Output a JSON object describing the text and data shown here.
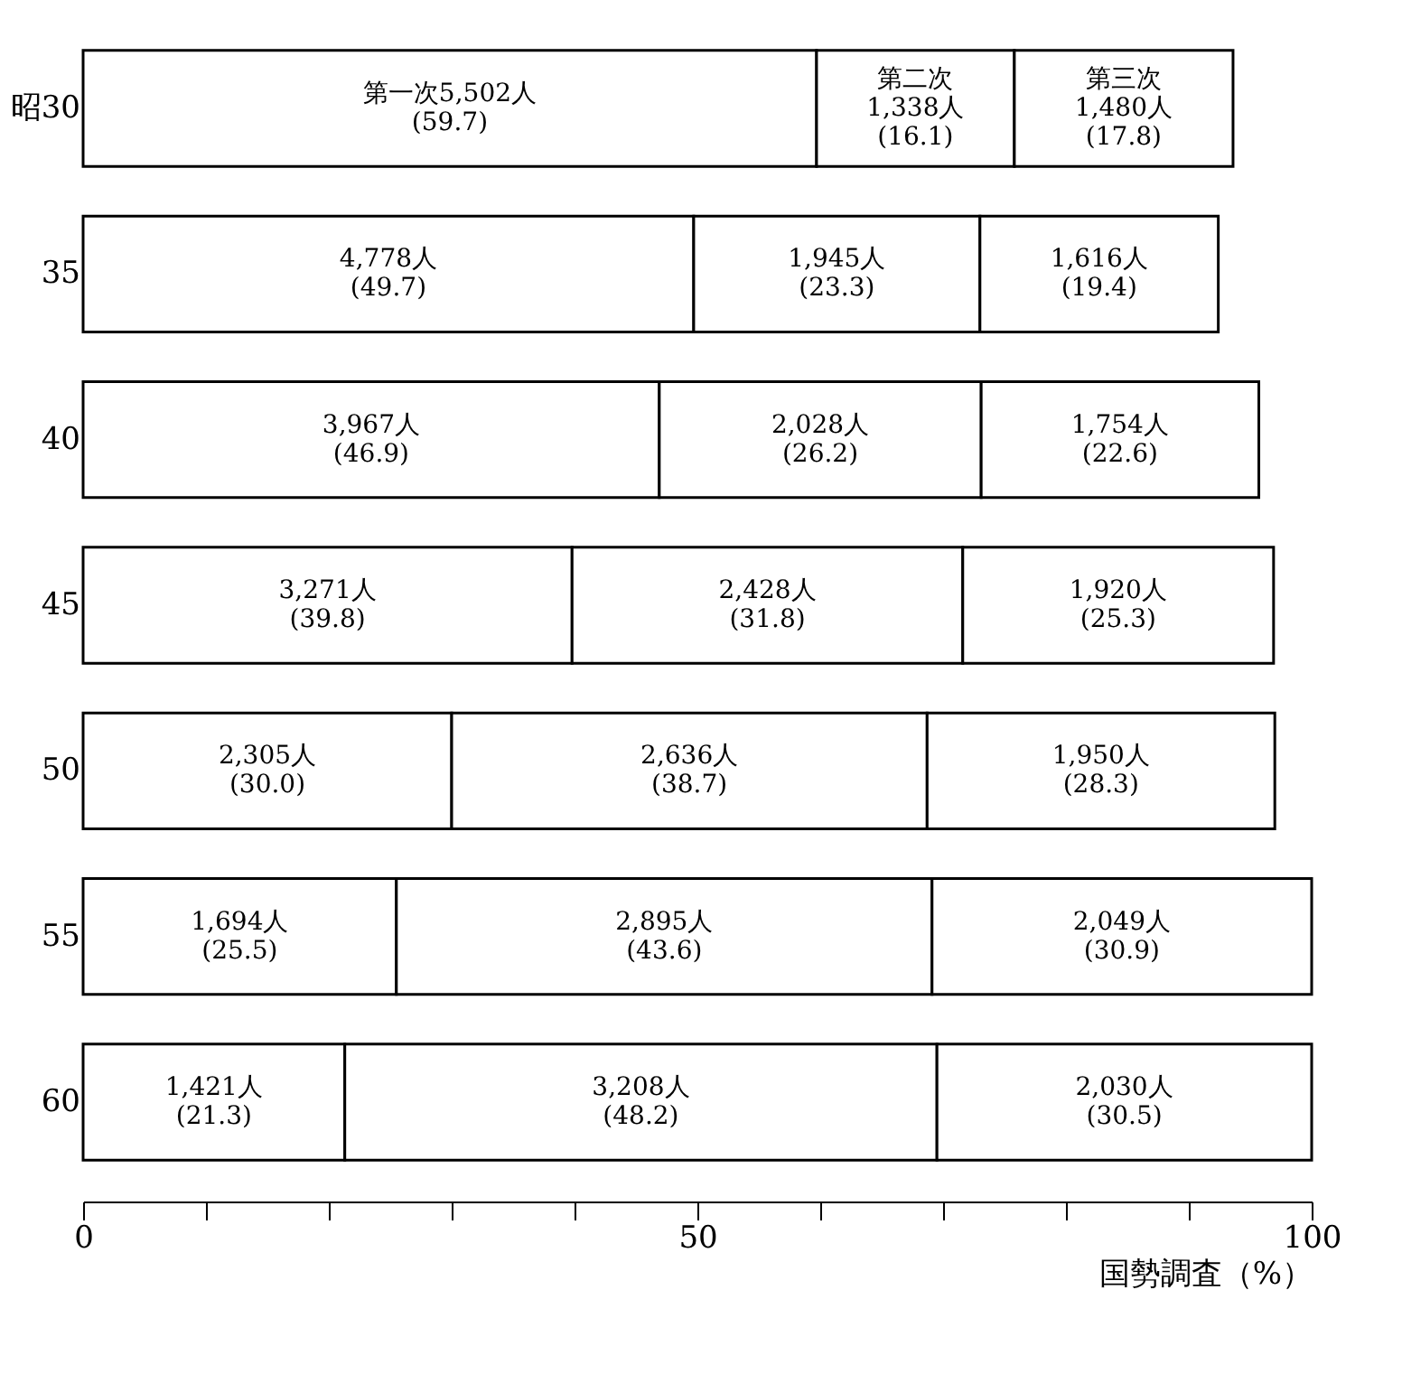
{
  "chart_data": {
    "type": "bar",
    "orientation": "horizontal",
    "stacked": true,
    "categories": [
      "昭30",
      "35",
      "40",
      "45",
      "50",
      "55",
      "60"
    ],
    "series": [
      {
        "color": "#ffffff",
        "values": [
          59.7,
          49.7,
          46.9,
          39.8,
          30.0,
          25.5,
          21.3
        ],
        "value_labels": [
          "第一次5,502人\n(59.7)",
          "4,778人\n(49.7)",
          "3,967人\n(46.9)",
          "3,271人\n(39.8)",
          "2,305人\n(30.0)",
          "1,694人\n(25.5)",
          "1,421人\n(21.3)"
        ]
      },
      {
        "color": "#ffffff",
        "values": [
          16.1,
          23.3,
          26.2,
          31.8,
          38.7,
          43.6,
          48.2
        ],
        "value_labels": [
          "第二次\n1,338人\n(16.1)",
          "1,945人\n(23.3)",
          "2,028人\n(26.2)",
          "2,428人\n(31.8)",
          "2,636人\n(38.7)",
          "2,895人\n(43.6)",
          "3,208人\n(48.2)"
        ]
      },
      {
        "color": "#ffffff",
        "values": [
          17.8,
          19.4,
          22.6,
          25.3,
          28.3,
          30.9,
          30.5
        ],
        "value_labels": [
          "第三次\n1,480人\n(17.8)",
          "1,616人\n(19.4)",
          "1,754人\n(22.6)",
          "1,920人\n(25.3)",
          "1,950人\n(28.3)",
          "2,049人\n(30.9)",
          "2,030人\n(30.5)"
        ]
      }
    ],
    "xlabel": "国勢調査（%）",
    "xlim": [
      0,
      100
    ],
    "xticks": [
      0,
      {
        "value": 10,
        "label": null
      },
      {
        "value": 20,
        "label": null
      },
      {
        "value": 30,
        "label": null
      },
      {
        "value": 40,
        "label": null
      },
      50,
      {
        "value": 60,
        "label": null
      },
      {
        "value": 70,
        "label": null
      },
      {
        "value": 80,
        "label": null
      },
      {
        "value": 90,
        "label": null
      },
      100
    ],
    "grid": false,
    "legend": false
  }
}
